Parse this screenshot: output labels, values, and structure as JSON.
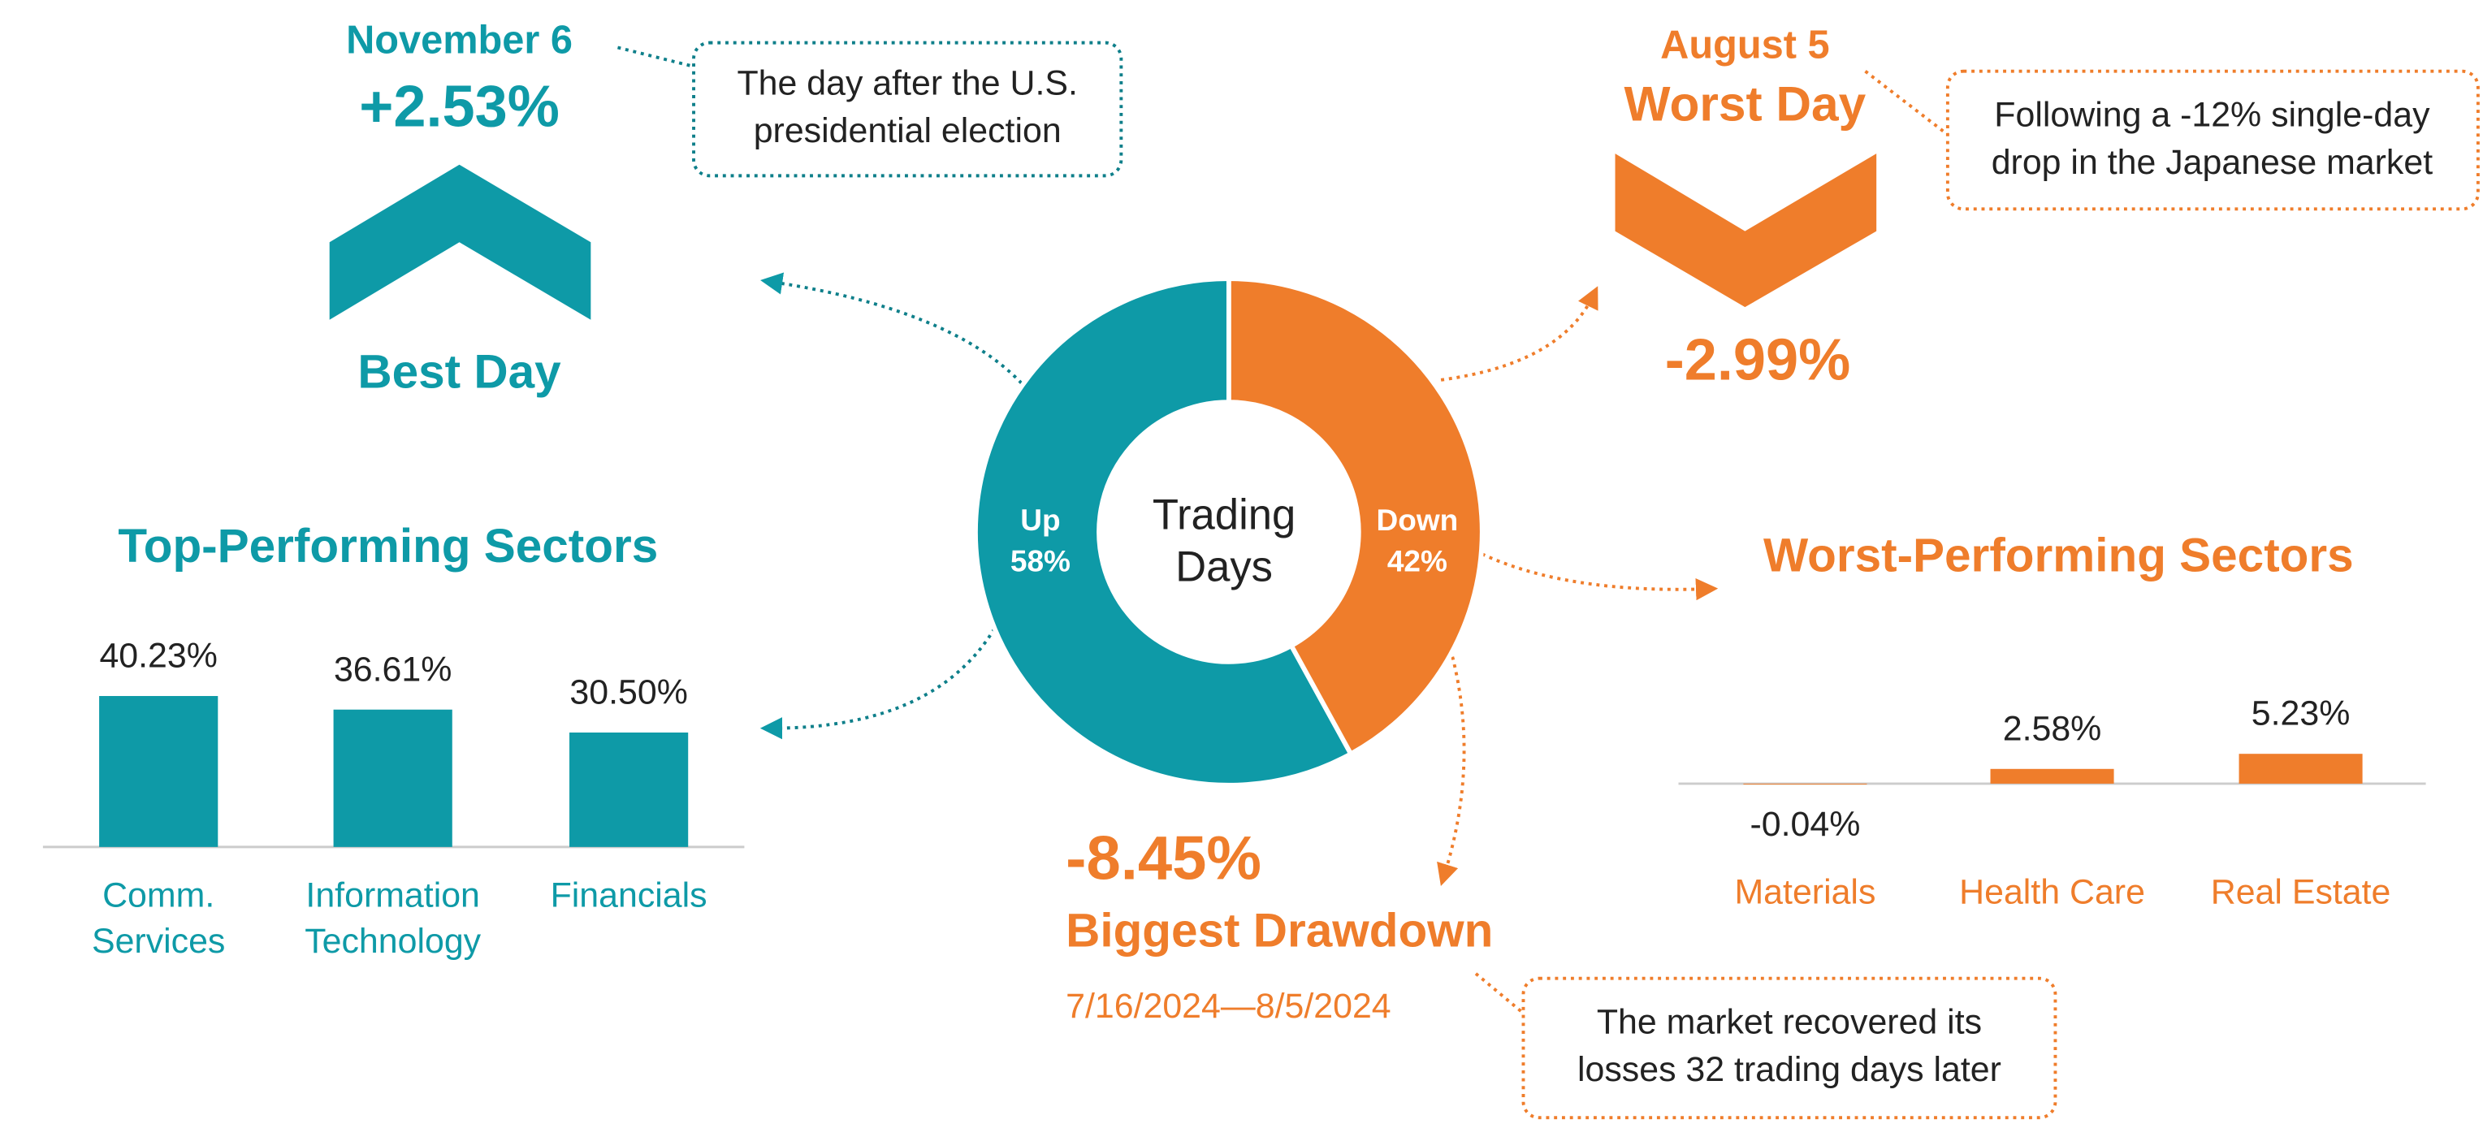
{
  "best_day": {
    "date": "November 6",
    "value": "+2.53%",
    "label": "Best Day",
    "note_lines": [
      "The day after the U.S.",
      "presidential election"
    ]
  },
  "worst_day": {
    "date": "August 5",
    "label": "Worst Day",
    "value": "-2.99%",
    "note_lines": [
      "Following a -12% single-day",
      "drop in the Japanese market"
    ]
  },
  "drawdown": {
    "value": "-8.45%",
    "label": "Biggest Drawdown",
    "dates": "7/16/2024—8/5/2024",
    "note_lines": [
      "The market recovered its",
      "losses 32 trading days later"
    ]
  },
  "chart_data": [
    {
      "type": "pie",
      "center_label": [
        "Trading",
        "Days"
      ],
      "categories": [
        "Up",
        "Down"
      ],
      "values": [
        58,
        42
      ],
      "value_labels": [
        "58%",
        "42%"
      ],
      "colors": [
        "#0e9aa7",
        "#ef7d2b"
      ]
    },
    {
      "type": "bar",
      "title": "Top-Performing Sectors",
      "categories": [
        [
          "Comm.",
          "Services"
        ],
        [
          "Information",
          "Technology"
        ],
        [
          "Financials"
        ]
      ],
      "values": [
        40.23,
        36.61,
        30.5
      ],
      "value_labels": [
        "40.23%",
        "36.61%",
        "30.50%"
      ],
      "color": "#0e9aa7"
    },
    {
      "type": "bar",
      "title": "Worst-Performing Sectors",
      "categories": [
        "Materials",
        "Health Care",
        "Real Estate"
      ],
      "values": [
        -0.04,
        2.58,
        5.23
      ],
      "value_labels": [
        "-0.04%",
        "2.58%",
        "5.23%"
      ],
      "color": "#ef7d2b"
    }
  ]
}
